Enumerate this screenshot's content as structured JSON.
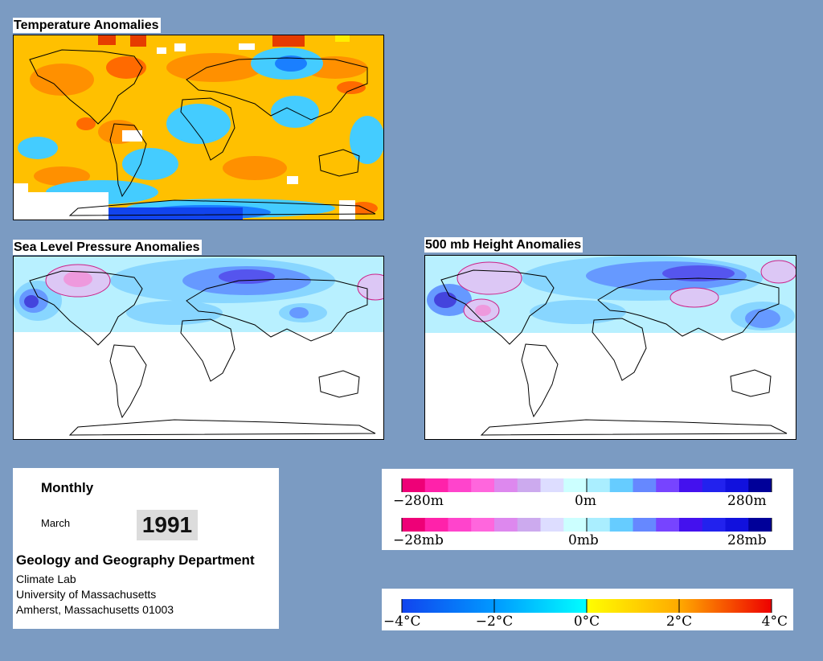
{
  "panels": {
    "temperature": {
      "title": "Temperature Anomalies"
    },
    "slp": {
      "title": "Sea Level Pressure Anomalies"
    },
    "height500": {
      "title": "500 mb Height Anomalies"
    }
  },
  "info": {
    "period": "Monthly",
    "month": "March",
    "year": "1991",
    "department": "Geology and Geography Department",
    "lab": "Climate Lab",
    "university": "University of Massachusetts",
    "address": "Amherst, Massachusetts 01003"
  },
  "legends": {
    "height": {
      "left": "−280m",
      "center": "0m",
      "right": "280m"
    },
    "pressure": {
      "left": "−28mb",
      "center": "0mb",
      "right": "28mb"
    },
    "temperature": {
      "ticks": [
        "−4°C",
        "−2°C",
        "0°C",
        "2°C",
        "4°C"
      ]
    }
  },
  "colors": {
    "background": "#7b9bc2",
    "pressure_scale": [
      "#ee0077",
      "#ff22aa",
      "#ff44cc",
      "#ff66dd",
      "#dd88ee",
      "#ccaaee",
      "#ddddff",
      "#ccffff",
      "#aaeeff",
      "#66ccff",
      "#6688ff",
      "#7744ff",
      "#4411ee",
      "#2222ee",
      "#1111dd",
      "#000099"
    ],
    "temperature_scale": [
      "#1144ee",
      "#0099ff",
      "#00ddff",
      "#ffff00",
      "#ffaa00",
      "#ff6600",
      "#ee0000"
    ]
  }
}
